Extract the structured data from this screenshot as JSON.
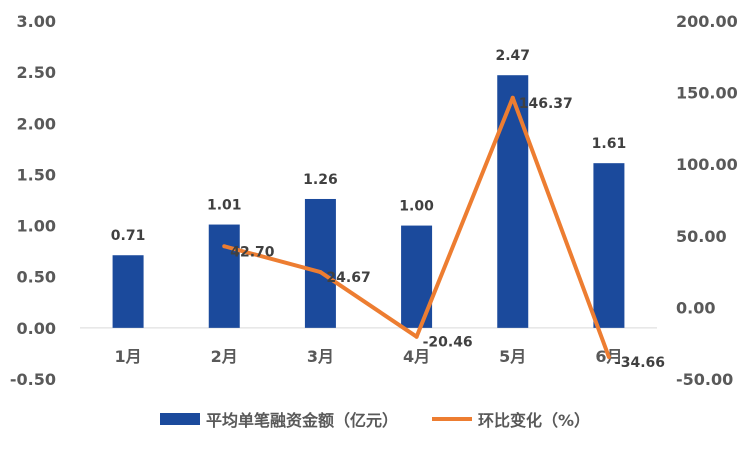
{
  "chart_data": {
    "type": "bar+line",
    "categories": [
      "1月",
      "2月",
      "3月",
      "4月",
      "5月",
      "6月"
    ],
    "series": [
      {
        "name": "平均单笔融资金额（亿元）",
        "type": "bar",
        "axis": "left",
        "values": [
          0.71,
          1.01,
          1.26,
          1.0,
          2.47,
          1.61
        ],
        "labels": [
          "0.71",
          "1.01",
          "1.26",
          "1.00",
          "2.47",
          "1.61"
        ]
      },
      {
        "name": "环比变化（%）",
        "type": "line",
        "axis": "right",
        "values": [
          null,
          42.7,
          24.67,
          -20.46,
          146.37,
          -34.66
        ],
        "labels": [
          "",
          "42.70",
          "24.67",
          "-20.46",
          "146.37",
          "-34.66"
        ]
      }
    ],
    "y_left": {
      "min": -0.5,
      "max": 3.0,
      "ticks": [
        3.0,
        2.5,
        2.0,
        1.5,
        1.0,
        0.5,
        0.0,
        -0.5
      ],
      "tick_labels": [
        "3.00",
        "2.50",
        "2.00",
        "1.50",
        "1.00",
        "0.50",
        "0.00",
        "-0.50"
      ]
    },
    "y_right": {
      "min": -50,
      "max": 200,
      "ticks": [
        200,
        150,
        100,
        50,
        0,
        -50
      ],
      "tick_labels": [
        "200.00",
        "150.00",
        "100.00",
        "50.00",
        "0.00",
        "-50.00"
      ]
    },
    "legend_position": "bottom",
    "grid": false,
    "colors": {
      "bar": "#1b4a9c",
      "line": "#ed7d31",
      "axis_text": "#595959",
      "axis_line": "#d9d9d9"
    }
  }
}
